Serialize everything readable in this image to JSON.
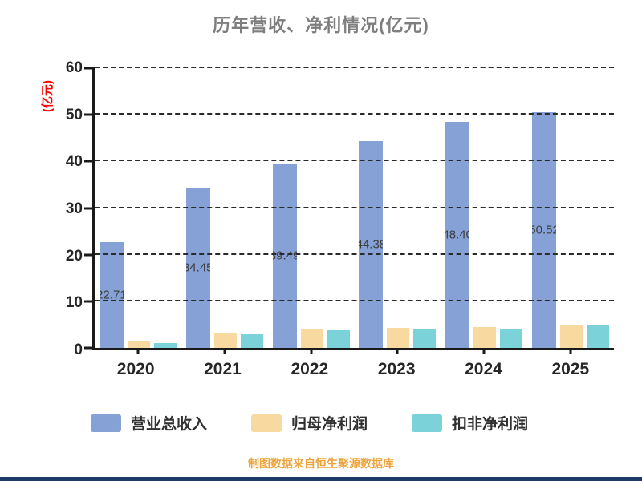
{
  "title": "历年营收、净利情况(亿元)",
  "y_axis_label": "(亿元)",
  "footer": "制图数据来自恒生聚源数据库",
  "accent_colors": {
    "revenue_bar": "#86a1d6",
    "net_profit_bar": "#f8d99f",
    "deducted_profit_bar": "#7bd2d8",
    "title_gray": "#7e7e7e",
    "ylabel_red": "#ff0000",
    "footer_orange": "#eda43c",
    "bottom_strip_navy": "#1d3a68"
  },
  "chart_data": {
    "type": "bar",
    "title": "历年营收、净利情况(亿元)",
    "categories": [
      "2020",
      "2021",
      "2022",
      "2023",
      "2024",
      "2025"
    ],
    "series": [
      {
        "name": "营业总收入",
        "color": "#86a1d6",
        "values": [
          22.71,
          34.45,
          39.49,
          44.38,
          48.4,
          50.52
        ],
        "labels": [
          "22.71",
          "34.45",
          "39.49",
          "44.38",
          "48.40",
          "50.52"
        ]
      },
      {
        "name": "归母净利润",
        "color": "#f8d99f",
        "values": [
          1.5,
          3.1,
          4.1,
          4.3,
          4.4,
          5.0
        ]
      },
      {
        "name": "扣非净利润",
        "color": "#7bd2d8",
        "values": [
          1.0,
          2.9,
          3.8,
          4.0,
          4.2,
          4.9
        ]
      }
    ],
    "xlabel": "",
    "ylabel": "(亿元)",
    "ylim": [
      0,
      60
    ],
    "yticks": [
      0,
      10,
      20,
      30,
      40,
      50,
      60
    ],
    "grid": "dashed-horizontal",
    "legend_position": "bottom"
  }
}
